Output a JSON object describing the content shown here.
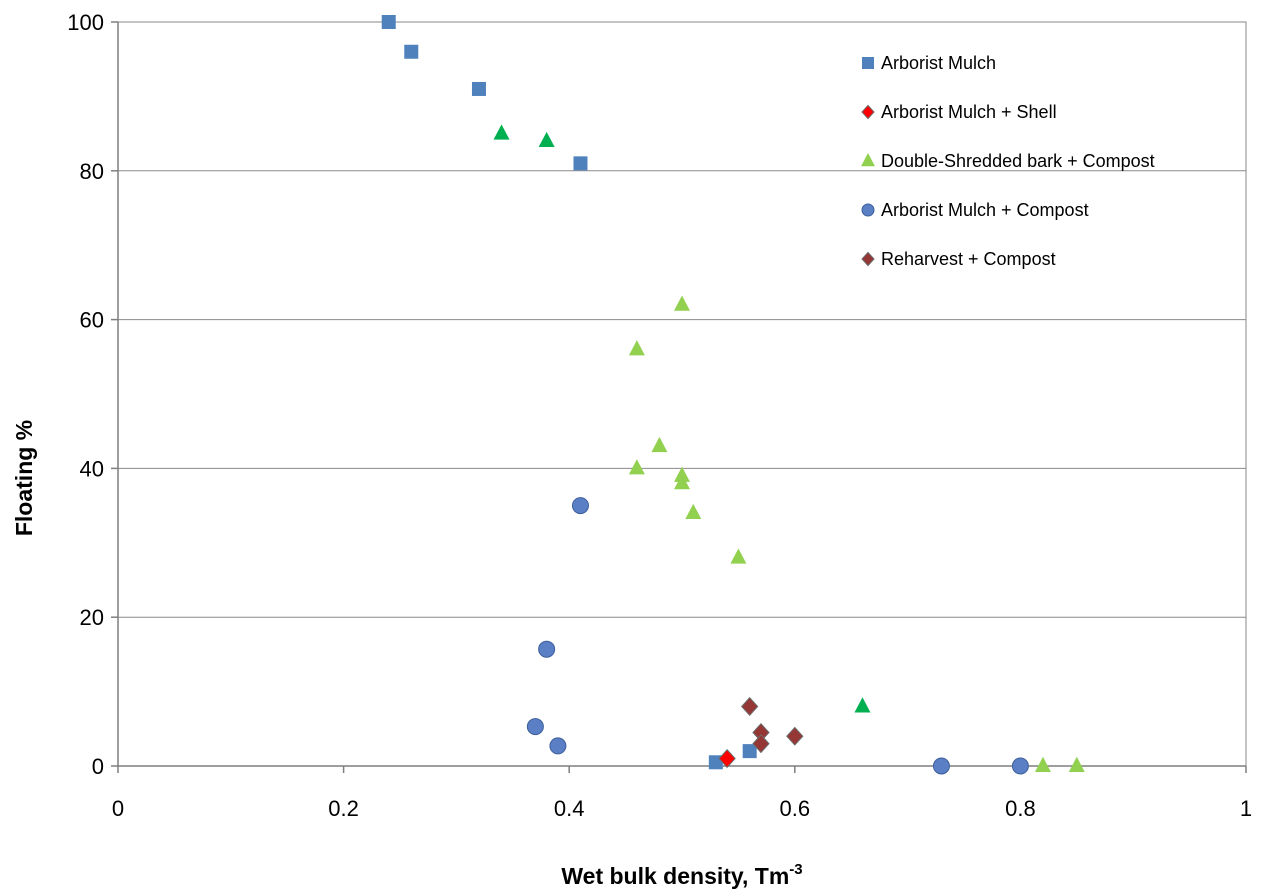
{
  "chart_data": {
    "type": "scatter",
    "xlabel": "Wet bulk density, Tm",
    "xlabel_sup": "-3",
    "ylabel": "Floating %",
    "xlim": [
      0,
      1
    ],
    "ylim": [
      0,
      100
    ],
    "x_ticks": [
      0,
      0.2,
      0.4,
      0.6,
      0.8,
      1
    ],
    "x_tick_labels": [
      "0",
      "0.2",
      "0.4",
      "0.6",
      "0.8",
      "1"
    ],
    "y_ticks": [
      0,
      20,
      40,
      60,
      80,
      100
    ],
    "y_tick_labels": [
      "0",
      "20",
      "40",
      "60",
      "80",
      "100"
    ],
    "grid": "horizontal",
    "legend_position": "top-right",
    "series": [
      {
        "name": "Arborist Mulch",
        "marker": "square",
        "color": "#4F81BD",
        "points": [
          [
            0.24,
            100
          ],
          [
            0.26,
            96
          ],
          [
            0.32,
            91
          ],
          [
            0.41,
            81
          ],
          [
            0.53,
            0.5
          ],
          [
            0.56,
            2
          ]
        ]
      },
      {
        "name": "Arborist Mulch + Shell",
        "marker": "diamond",
        "color": "#FF0000",
        "points": [
          [
            0.54,
            1
          ]
        ]
      },
      {
        "name": "Double-Shredded bark + Compost",
        "marker": "triangle",
        "color": "#92D050",
        "points": [
          [
            0.5,
            62
          ],
          [
            0.46,
            56
          ],
          [
            0.48,
            43
          ],
          [
            0.46,
            40
          ],
          [
            0.5,
            39
          ],
          [
            0.5,
            38
          ],
          [
            0.51,
            34
          ],
          [
            0.55,
            28
          ],
          [
            0.82,
            0
          ],
          [
            0.85,
            0
          ]
        ]
      },
      {
        "name": "",
        "marker": "triangle",
        "color": "#00B050",
        "points": [
          [
            0.34,
            85
          ],
          [
            0.38,
            84
          ],
          [
            0.66,
            8
          ]
        ]
      },
      {
        "name": "Arborist Mulch + Compost",
        "marker": "circle",
        "color": "#5B7FC4",
        "points": [
          [
            0.41,
            35
          ],
          [
            0.38,
            15.7
          ],
          [
            0.37,
            5.3
          ],
          [
            0.39,
            2.7
          ],
          [
            0.73,
            0
          ],
          [
            0.8,
            0
          ]
        ]
      },
      {
        "name": "Reharvest + Compost",
        "marker": "diamond",
        "color": "#953735",
        "points": [
          [
            0.56,
            8
          ],
          [
            0.57,
            4.5
          ],
          [
            0.57,
            3
          ],
          [
            0.6,
            4
          ]
        ]
      }
    ]
  }
}
